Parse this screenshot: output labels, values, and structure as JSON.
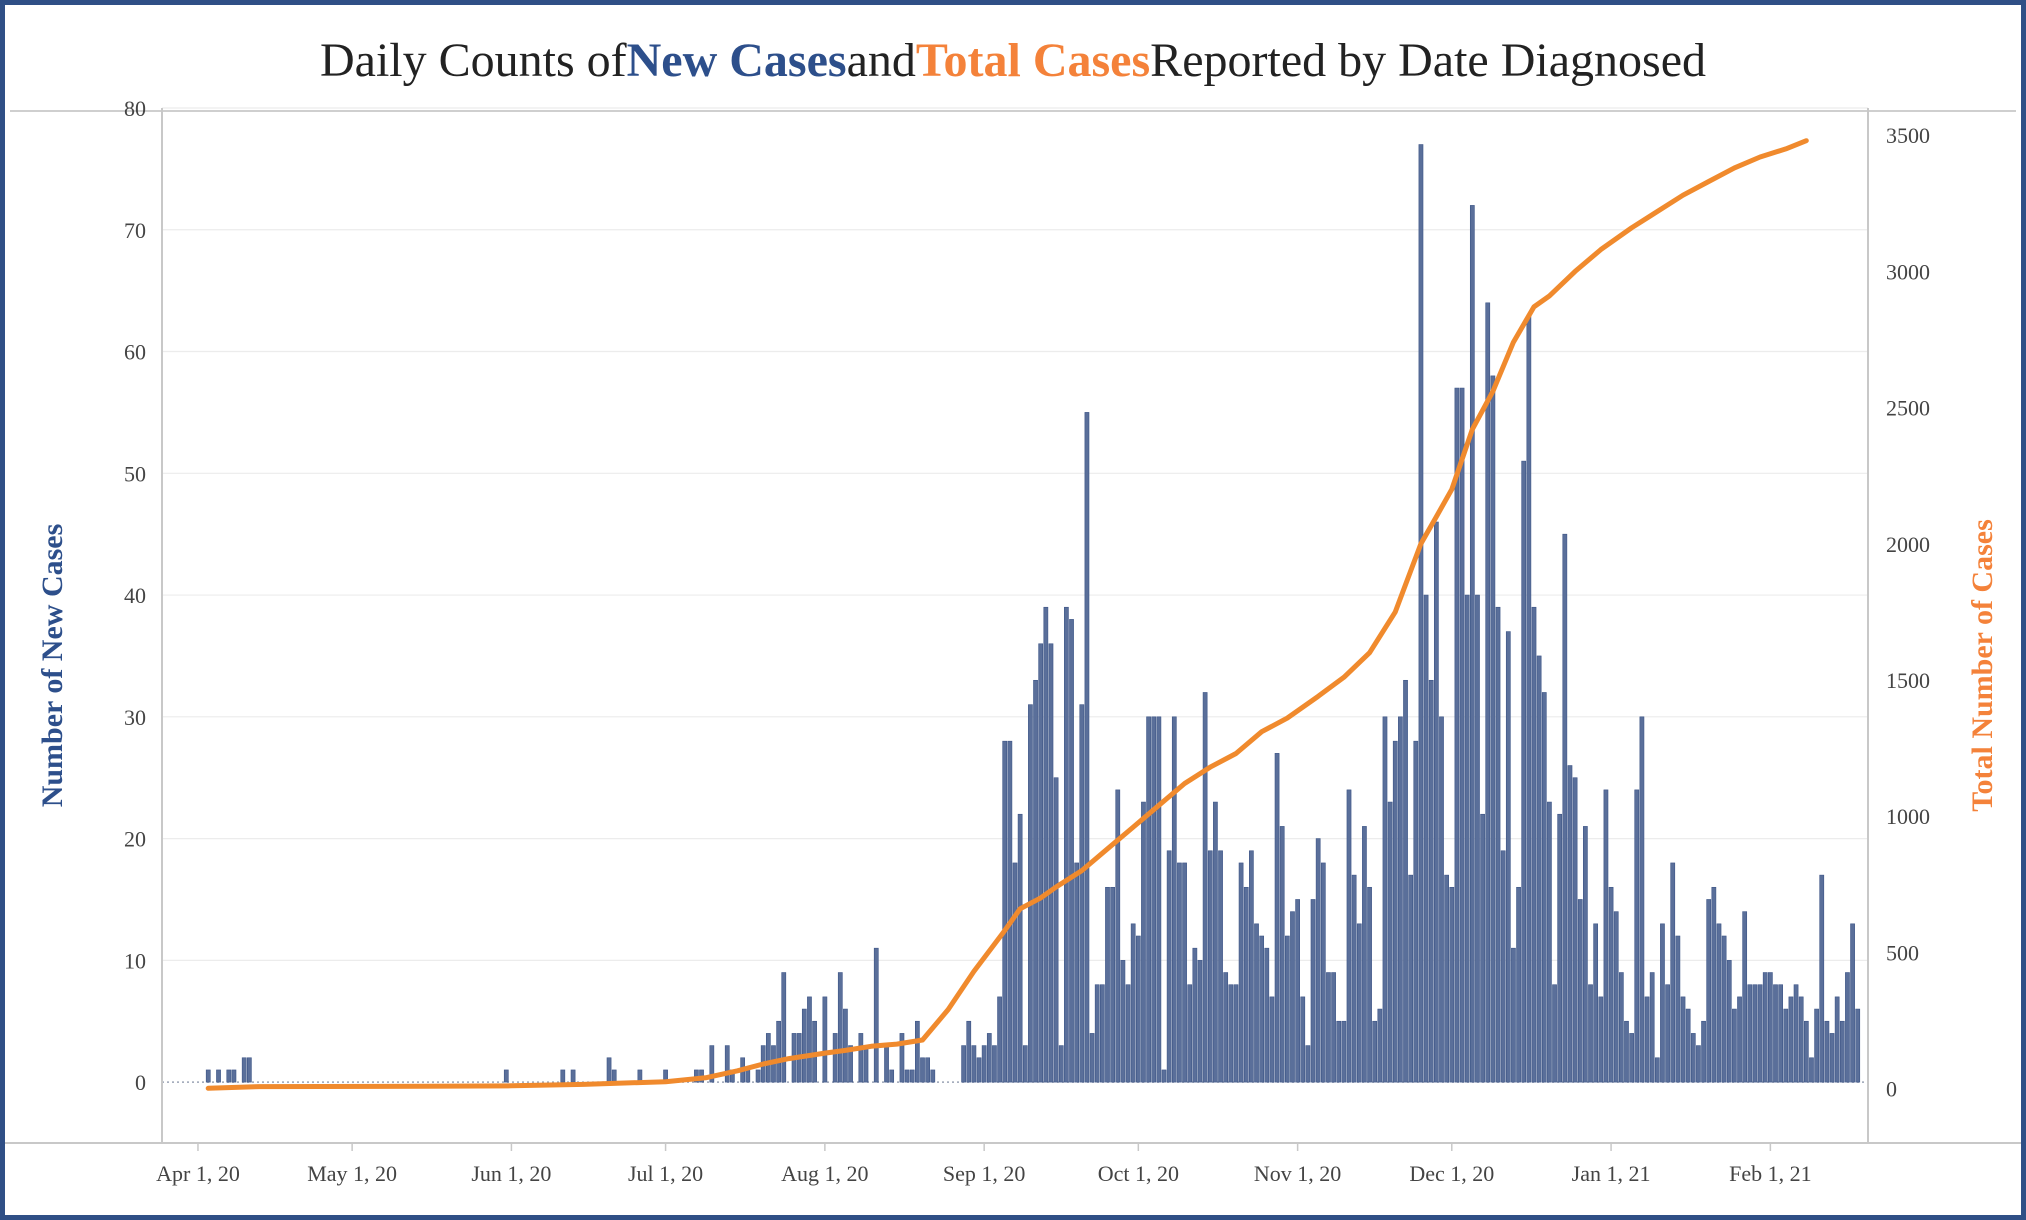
{
  "title": {
    "prefix": "Daily Counts of ",
    "new_cases": "New Cases",
    "middle": " and ",
    "total_cases": "Total Cases",
    "suffix": " Reported by Date Diagnosed"
  },
  "colors": {
    "bar": "#5a6f9a",
    "bar_stroke": "#3d5586",
    "line": "#f08a2d",
    "left_axis_title": "#2d4f8b",
    "right_axis_title": "#f4823a",
    "frame": "#2f4f86",
    "grid": "#ececec"
  },
  "chart_data": {
    "type": "bar",
    "title": "Daily Counts of New Cases and Total Cases Reported by Date Diagnosed",
    "ylabel": "Number of New Cases",
    "y2label": "Total Number of Cases",
    "xlim": [
      "2020-03-25",
      "2021-02-20"
    ],
    "ylim": [
      -5,
      80
    ],
    "y2lim": [
      -200,
      3600
    ],
    "x_ticks": [
      {
        "date": "2020-04-01",
        "label": "Apr 1, 20"
      },
      {
        "date": "2020-05-01",
        "label": "May 1, 20"
      },
      {
        "date": "2020-06-01",
        "label": "Jun 1, 20"
      },
      {
        "date": "2020-07-01",
        "label": "Jul 1, 20"
      },
      {
        "date": "2020-08-01",
        "label": "Aug 1, 20"
      },
      {
        "date": "2020-09-01",
        "label": "Sep 1, 20"
      },
      {
        "date": "2020-10-01",
        "label": "Oct 1, 20"
      },
      {
        "date": "2020-11-01",
        "label": "Nov 1, 20"
      },
      {
        "date": "2020-12-01",
        "label": "Dec 1, 20"
      },
      {
        "date": "2021-01-01",
        "label": "Jan 1, 21"
      },
      {
        "date": "2021-02-01",
        "label": "Feb 1, 21"
      }
    ],
    "y_ticks": [
      0,
      10,
      20,
      30,
      40,
      50,
      60,
      70,
      80
    ],
    "y2_ticks": [
      0,
      500,
      1000,
      1500,
      2000,
      2500,
      3000,
      3500
    ],
    "grid": true,
    "series": [
      {
        "name": "New Cases",
        "type": "bar",
        "axis": "left",
        "start_date": "2020-04-03",
        "values": [
          1,
          0,
          1,
          0,
          1,
          1,
          0,
          2,
          2,
          0,
          0,
          0,
          0,
          0,
          0,
          0,
          0,
          0,
          0,
          0,
          0,
          0,
          0,
          0,
          0,
          0,
          0,
          0,
          0,
          0,
          0,
          0,
          0,
          0,
          0,
          0,
          0,
          0,
          0,
          0,
          0,
          0,
          0,
          0,
          0,
          0,
          0,
          0,
          0,
          0,
          0,
          0,
          0,
          0,
          0,
          0,
          0,
          0,
          1,
          0,
          0,
          0,
          0,
          0,
          0,
          0,
          0,
          0,
          0,
          1,
          0,
          1,
          0,
          0,
          0,
          0,
          0,
          0,
          2,
          1,
          0,
          0,
          0,
          0,
          1,
          0,
          0,
          0,
          0,
          1,
          0,
          0,
          0,
          0,
          0,
          1,
          1,
          0,
          3,
          0,
          0,
          3,
          1,
          0,
          2,
          1,
          0,
          1,
          3,
          4,
          3,
          5,
          9,
          0,
          4,
          4,
          6,
          7,
          5,
          0,
          7,
          0,
          4,
          9,
          6,
          3,
          0,
          4,
          3,
          0,
          11,
          0,
          3,
          1,
          0,
          4,
          1,
          1,
          5,
          2,
          2,
          1,
          0,
          0,
          0,
          0,
          0,
          3,
          5,
          3,
          2,
          3,
          4,
          3,
          7,
          28,
          28,
          18,
          22,
          3,
          31,
          33,
          36,
          39,
          36,
          25,
          3,
          39,
          38,
          18,
          31,
          55,
          4,
          8,
          8,
          16,
          16,
          24,
          10,
          8,
          13,
          12,
          23,
          30,
          30,
          30,
          1,
          19,
          30,
          18,
          18,
          8,
          11,
          10,
          32,
          19,
          23,
          19,
          9,
          8,
          8,
          18,
          16,
          19,
          13,
          12,
          11,
          7,
          27,
          21,
          12,
          14,
          15,
          7,
          3,
          15,
          20,
          18,
          9,
          9,
          5,
          5,
          24,
          17,
          13,
          21,
          16,
          5,
          6,
          30,
          23,
          28,
          30,
          33,
          17,
          28,
          77,
          40,
          33,
          46,
          30,
          17,
          16,
          57,
          57,
          40,
          72,
          40,
          22,
          64,
          58,
          39,
          19,
          37,
          11,
          16,
          51,
          63,
          39,
          35,
          32,
          23,
          8,
          22,
          45,
          26,
          25,
          15,
          21,
          8,
          13,
          7,
          24,
          16,
          14,
          9,
          5,
          4,
          24,
          30,
          7,
          9,
          2,
          13,
          8,
          18,
          12,
          7,
          6,
          4,
          3,
          5,
          15,
          16,
          13,
          12,
          10,
          6,
          7,
          14,
          8,
          8,
          8,
          9,
          9,
          8,
          8,
          6,
          7,
          8,
          7,
          5,
          2,
          6,
          17,
          5,
          4,
          7,
          5,
          9,
          13,
          6
        ]
      },
      {
        "name": "Total Cases",
        "type": "line",
        "axis": "right",
        "points": [
          [
            "2020-04-03",
            1
          ],
          [
            "2020-04-13",
            7
          ],
          [
            "2020-05-15",
            8
          ],
          [
            "2020-06-01",
            10
          ],
          [
            "2020-06-15",
            15
          ],
          [
            "2020-07-01",
            25
          ],
          [
            "2020-07-09",
            40
          ],
          [
            "2020-07-15",
            65
          ],
          [
            "2020-07-20",
            90
          ],
          [
            "2020-07-25",
            110
          ],
          [
            "2020-08-01",
            130
          ],
          [
            "2020-08-05",
            140
          ],
          [
            "2020-08-10",
            155
          ],
          [
            "2020-08-15",
            163
          ],
          [
            "2020-08-20",
            178
          ],
          [
            "2020-08-25",
            290
          ],
          [
            "2020-08-30",
            430
          ],
          [
            "2020-09-05",
            580
          ],
          [
            "2020-09-08",
            660
          ],
          [
            "2020-09-12",
            700
          ],
          [
            "2020-09-15",
            740
          ],
          [
            "2020-09-20",
            800
          ],
          [
            "2020-09-25",
            880
          ],
          [
            "2020-09-30",
            960
          ],
          [
            "2020-10-05",
            1040
          ],
          [
            "2020-10-10",
            1120
          ],
          [
            "2020-10-15",
            1180
          ],
          [
            "2020-10-20",
            1230
          ],
          [
            "2020-10-25",
            1310
          ],
          [
            "2020-10-30",
            1360
          ],
          [
            "2020-11-05",
            1440
          ],
          [
            "2020-11-10",
            1510
          ],
          [
            "2020-11-15",
            1600
          ],
          [
            "2020-11-20",
            1750
          ],
          [
            "2020-11-25",
            2000
          ],
          [
            "2020-11-28",
            2100
          ],
          [
            "2020-12-01",
            2200
          ],
          [
            "2020-12-05",
            2420
          ],
          [
            "2020-12-09",
            2560
          ],
          [
            "2020-12-13",
            2740
          ],
          [
            "2020-12-17",
            2870
          ],
          [
            "2020-12-20",
            2910
          ],
          [
            "2020-12-25",
            3000
          ],
          [
            "2020-12-30",
            3080
          ],
          [
            "2021-01-05",
            3160
          ],
          [
            "2021-01-10",
            3220
          ],
          [
            "2021-01-15",
            3280
          ],
          [
            "2021-01-20",
            3330
          ],
          [
            "2021-01-25",
            3380
          ],
          [
            "2021-01-30",
            3420
          ],
          [
            "2021-02-04",
            3450
          ],
          [
            "2021-02-08",
            3480
          ]
        ]
      }
    ]
  }
}
